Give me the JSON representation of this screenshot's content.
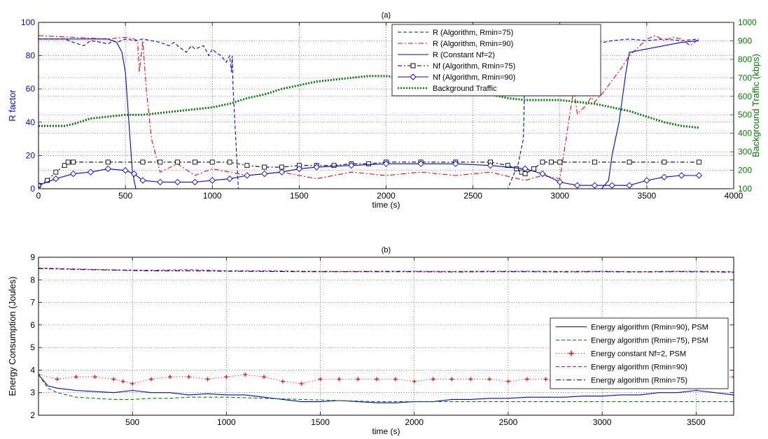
{
  "chart_data": [
    {
      "type": "line",
      "title": "(a)",
      "xlabel": "time (s)",
      "ylabel": "R factor",
      "y2label": "Background Traffic (kbps)",
      "xlim": [
        0,
        4000
      ],
      "ylim": [
        0,
        100
      ],
      "y2lim": [
        100,
        1000
      ],
      "xticks": [
        0,
        500,
        1000,
        1500,
        2000,
        2500,
        3000,
        3500,
        4000
      ],
      "yticks": [
        0,
        20,
        40,
        60,
        80,
        100
      ],
      "y2ticks": [
        100,
        200,
        300,
        400,
        500,
        600,
        700,
        800,
        900,
        1000
      ],
      "grid": true,
      "legend_position": "top-center",
      "series": [
        {
          "name": "R (Algorithm, Rmin=75)",
          "axis": "left",
          "color": "#0000ff",
          "style": "dashed",
          "x": [
            0,
            150,
            200,
            260,
            300,
            360,
            400,
            430,
            450,
            500,
            560,
            600,
            650,
            700,
            750,
            780,
            800,
            850,
            880,
            900,
            950,
            980,
            1000,
            1020,
            1050,
            1080,
            1100,
            1110,
            1115,
            1120,
            1140,
            1150,
            1300,
            1500,
            1700,
            1900,
            2100,
            2300,
            2500,
            2700,
            2760,
            2790,
            2800,
            2830,
            2860,
            2900,
            2950,
            3000,
            3050,
            3100,
            3150,
            3200,
            3250,
            3300,
            3400,
            3500,
            3600,
            3700,
            3800
          ],
          "y": [
            90,
            90,
            88,
            86,
            89,
            88,
            87,
            89,
            88,
            90,
            89,
            90,
            89,
            88,
            86,
            88,
            86,
            82,
            86,
            84,
            86,
            80,
            84,
            82,
            80,
            76,
            80,
            70,
            80,
            60,
            20,
            0,
            0,
            0,
            0,
            0,
            0,
            0,
            0,
            0,
            15,
            30,
            80,
            82,
            84,
            80,
            86,
            88,
            90,
            89,
            87,
            90,
            88,
            89,
            90,
            89,
            90,
            89,
            90
          ]
        },
        {
          "name": "R (Algorithm, Rmin=90)",
          "axis": "left",
          "color": "#ff0000",
          "style": "dashdot",
          "x": [
            0,
            200,
            400,
            500,
            550,
            570,
            580,
            600,
            620,
            650,
            700,
            800,
            900,
            1000,
            1200,
            1400,
            1600,
            1800,
            2000,
            2200,
            2400,
            2600,
            2800,
            2900,
            3000,
            3050,
            3080,
            3100,
            3150,
            3180,
            3200,
            3250,
            3300,
            3350,
            3400,
            3450,
            3500,
            3550,
            3600,
            3650,
            3700,
            3750,
            3800
          ],
          "y": [
            92,
            91,
            90,
            91,
            90,
            89,
            70,
            89,
            60,
            30,
            10,
            15,
            8,
            12,
            8,
            10,
            6,
            10,
            8,
            10,
            8,
            10,
            5,
            8,
            6,
            40,
            60,
            45,
            50,
            55,
            52,
            58,
            65,
            72,
            80,
            85,
            90,
            92,
            89,
            91,
            90,
            86,
            90
          ]
        },
        {
          "name": "R (Constant Nf=2)",
          "axis": "left",
          "color": "#0000ff",
          "style": "solid",
          "x": [
            0,
            100,
            200,
            300,
            400,
            450,
            480,
            500,
            520,
            540,
            560,
            600,
            700,
            800,
            1000,
            1200,
            1400,
            1600,
            1800,
            2000,
            2200,
            2400,
            2600,
            2800,
            2900,
            3000,
            3100,
            3150,
            3200,
            3240,
            3280,
            3300,
            3340,
            3380,
            3400,
            3500,
            3600,
            3700,
            3800
          ],
          "y": [
            90,
            90,
            90,
            90,
            90,
            88,
            82,
            70,
            40,
            10,
            0,
            0,
            0,
            0,
            0,
            0,
            0,
            0,
            0,
            0,
            0,
            0,
            0,
            0,
            0,
            0,
            0,
            0,
            0,
            0,
            5,
            20,
            40,
            70,
            82,
            84,
            86,
            88,
            89
          ]
        },
        {
          "name": "Nf (Algorithm, Rmin=75)",
          "axis": "left",
          "color": "#000000",
          "style": "dashdot-square",
          "x": [
            0,
            50,
            100,
            150,
            170,
            200,
            400,
            600,
            700,
            800,
            900,
            1000,
            1100,
            1200,
            1300,
            1400,
            1500,
            1600,
            1700,
            1800,
            1900,
            2000,
            2200,
            2400,
            2600,
            2700,
            2750,
            2780,
            2800,
            2850,
            2900,
            2950,
            3000,
            3200,
            3400,
            3600,
            3800
          ],
          "y": [
            2,
            5,
            10,
            14,
            16,
            16,
            16,
            16,
            16,
            16,
            16,
            16,
            16,
            14,
            13,
            13,
            14,
            14,
            14,
            15,
            15,
            16,
            16,
            16,
            16,
            14,
            12,
            10,
            9,
            12,
            16,
            16,
            16,
            16,
            16,
            16,
            16
          ]
        },
        {
          "name": "Nf (Algorithm, Rmin=90)",
          "axis": "left",
          "color": "#0000ff",
          "style": "solid-diamond",
          "x": [
            0,
            100,
            200,
            300,
            400,
            500,
            550,
            600,
            700,
            800,
            900,
            1000,
            1100,
            1200,
            1300,
            1400,
            1500,
            1600,
            1800,
            2000,
            2200,
            2400,
            2600,
            2800,
            2900,
            3000,
            3100,
            3200,
            3300,
            3400,
            3500,
            3600,
            3700,
            3800
          ],
          "y": [
            2,
            6,
            9,
            10,
            12,
            11,
            9,
            5,
            4,
            4,
            4,
            5,
            6,
            8,
            9,
            10,
            12,
            13,
            14,
            15,
            15,
            15,
            14,
            12,
            9,
            4,
            2,
            2,
            2,
            2,
            5,
            7,
            8,
            8
          ]
        },
        {
          "name": "Background Traffic",
          "axis": "right",
          "color": "#008000",
          "style": "dotted-thick",
          "x": [
            0,
            150,
            200,
            300,
            400,
            500,
            600,
            700,
            800,
            900,
            1000,
            1100,
            1200,
            1300,
            1400,
            1500,
            1600,
            1700,
            1800,
            1900,
            2000,
            2100,
            2200,
            2300,
            2400,
            2500,
            2600,
            2700,
            2800,
            2900,
            3000,
            3100,
            3200,
            3300,
            3400,
            3500,
            3600,
            3700,
            3800
          ],
          "y": [
            440,
            440,
            450,
            480,
            490,
            500,
            500,
            510,
            520,
            530,
            540,
            560,
            590,
            610,
            640,
            660,
            680,
            690,
            700,
            710,
            710,
            700,
            690,
            670,
            650,
            630,
            610,
            590,
            580,
            580,
            580,
            570,
            560,
            540,
            520,
            490,
            460,
            440,
            430
          ]
        }
      ]
    },
    {
      "type": "line",
      "title": "(b)",
      "xlabel": "time (s)",
      "ylabel": "Energy Consumption (Joules)",
      "xlim": [
        0,
        3700
      ],
      "ylim": [
        2,
        9
      ],
      "xticks": [
        500,
        1000,
        1500,
        2000,
        2500,
        3000,
        3500
      ],
      "yticks": [
        2,
        3,
        4,
        5,
        6,
        7,
        8,
        9
      ],
      "grid": true,
      "legend_position": "right",
      "series": [
        {
          "name": "Energy algorithm (Rmin=90), PSM",
          "color": "#0000ff",
          "style": "solid",
          "x": [
            0,
            50,
            100,
            200,
            300,
            400,
            500,
            600,
            700,
            800,
            900,
            1000,
            1100,
            1200,
            1300,
            1400,
            1500,
            1600,
            1700,
            1800,
            1900,
            2000,
            2100,
            2200,
            2300,
            2400,
            2500,
            2600,
            2700,
            2800,
            2900,
            3000,
            3100,
            3200,
            3300,
            3400,
            3500,
            3600,
            3700
          ],
          "y": [
            3.8,
            3.3,
            3.2,
            3.1,
            3.05,
            3.0,
            3.1,
            3.0,
            3.0,
            2.9,
            2.95,
            2.9,
            2.9,
            2.8,
            2.7,
            2.6,
            2.6,
            2.65,
            2.6,
            2.55,
            2.55,
            2.6,
            2.6,
            2.7,
            2.7,
            2.75,
            2.75,
            2.8,
            2.8,
            2.8,
            2.85,
            2.85,
            2.9,
            2.9,
            3.0,
            3.0,
            3.1,
            3.0,
            2.9
          ]
        },
        {
          "name": "Energy algorithm (Rmin=75), PSM",
          "color": "#008000",
          "style": "dashed",
          "x": [
            0,
            50,
            100,
            200,
            300,
            400,
            500,
            600,
            700,
            800,
            900,
            1000,
            1200,
            1400,
            1600,
            1800,
            2000,
            2200,
            2400,
            2600,
            2800,
            3000,
            3200,
            3400,
            3600,
            3700
          ],
          "y": [
            3.8,
            3.2,
            3.0,
            2.8,
            2.75,
            2.7,
            2.7,
            2.75,
            2.75,
            2.8,
            2.8,
            2.8,
            2.75,
            2.7,
            2.65,
            2.6,
            2.6,
            2.6,
            2.6,
            2.6,
            2.6,
            2.6,
            2.6,
            2.6,
            2.6,
            2.6
          ]
        },
        {
          "name": "Energy constant Nf=2, PSM",
          "color": "#ff0000",
          "style": "dotted-plus",
          "x": [
            0,
            100,
            200,
            300,
            400,
            450,
            500,
            600,
            700,
            800,
            900,
            1000,
            1100,
            1200,
            1300,
            1400,
            1500,
            1600,
            1700,
            1800,
            1900,
            2000,
            2100,
            2200,
            2300,
            2400,
            2500,
            2600,
            2700,
            2800,
            2900,
            3000,
            3100,
            3200,
            3300,
            3400,
            3500,
            3600,
            3700
          ],
          "y": [
            3.8,
            3.6,
            3.7,
            3.7,
            3.6,
            3.5,
            3.4,
            3.6,
            3.7,
            3.7,
            3.6,
            3.7,
            3.8,
            3.7,
            3.5,
            3.4,
            3.6,
            3.6,
            3.6,
            3.6,
            3.6,
            3.5,
            3.6,
            3.6,
            3.6,
            3.6,
            3.5,
            3.6,
            3.6,
            3.4,
            3.5,
            3.6,
            3.6,
            3.4,
            3.4,
            3.4,
            3.5,
            3.6,
            3.7
          ]
        },
        {
          "name": "Energy algorithm (Rmin=90)",
          "color": "#cc00cc",
          "style": "dashed",
          "x": [
            0,
            200,
            400,
            600,
            800,
            1000,
            1200,
            1400,
            1600,
            1800,
            2000,
            2200,
            2400,
            2600,
            2800,
            3000,
            3200,
            3400,
            3600,
            3700
          ],
          "y": [
            8.52,
            8.48,
            8.44,
            8.42,
            8.45,
            8.4,
            8.4,
            8.38,
            8.37,
            8.38,
            8.38,
            8.37,
            8.38,
            8.38,
            8.37,
            8.38,
            8.36,
            8.38,
            8.37,
            8.36
          ]
        },
        {
          "name": "Energy algorithm (Rmin=75)",
          "color": "#000080",
          "style": "dashdot",
          "x": [
            0,
            200,
            400,
            600,
            800,
            1000,
            1200,
            1400,
            1600,
            1800,
            2000,
            2200,
            2400,
            2600,
            2800,
            3000,
            3200,
            3400,
            3600,
            3700
          ],
          "y": [
            8.5,
            8.46,
            8.43,
            8.4,
            8.4,
            8.38,
            8.37,
            8.36,
            8.36,
            8.36,
            8.36,
            8.35,
            8.36,
            8.36,
            8.35,
            8.36,
            8.35,
            8.36,
            8.35,
            8.34
          ]
        }
      ]
    }
  ]
}
